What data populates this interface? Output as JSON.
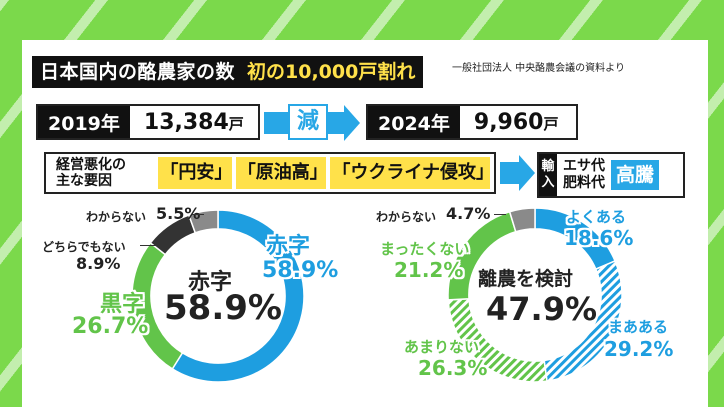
{
  "header": {
    "title": "日本国内の酪農家の数",
    "subtitle": "初の10,000戸割れ",
    "source": "一般社団法人 中央酪農会議の資料より"
  },
  "trend": {
    "year_from": "2019年",
    "value_from": "13,384",
    "unit": "戸",
    "change_label": "減",
    "year_to": "2024年",
    "value_to": "9,960"
  },
  "causes": {
    "label_line1": "経営悪化の",
    "label_line2": "主な要因",
    "items": [
      "「円安」",
      "「原油高」",
      "「ウクライナ侵攻」"
    ]
  },
  "impact": {
    "tag_line1": "輸",
    "tag_line2": "入",
    "item1": "エサ代",
    "item2": "肥料代",
    "result": "高騰"
  },
  "chart_data": [
    {
      "type": "pie",
      "center_label": "赤字",
      "center_value": "58.9%",
      "slices": [
        {
          "label": "赤字",
          "value": 58.9,
          "color": "#1e9ee0"
        },
        {
          "label": "黒字",
          "value": 26.7,
          "color": "#62c44a"
        },
        {
          "label": "どちらでもない",
          "value": 8.9,
          "color": "#333333"
        },
        {
          "label": "わからない",
          "value": 5.5,
          "color": "#8a8a8a"
        }
      ],
      "value_labels": [
        "58.9%",
        "26.7%",
        "8.9%",
        "5.5%"
      ]
    },
    {
      "type": "pie",
      "center_label": "離農を検討",
      "center_value": "47.9%",
      "slices": [
        {
          "label": "よくある",
          "value": 18.6,
          "color": "#1e9ee0"
        },
        {
          "label": "まあある",
          "value": 29.2,
          "color": "#1e9ee0",
          "pattern": "hatched"
        },
        {
          "label": "あまりない",
          "value": 26.3,
          "color": "#62c44a",
          "pattern": "hatched"
        },
        {
          "label": "まったくない",
          "value": 21.2,
          "color": "#62c44a"
        },
        {
          "label": "わからない",
          "value": 4.7,
          "color": "#8a8a8a"
        }
      ],
      "value_labels": [
        "18.6%",
        "29.2%",
        "26.3%",
        "21.2%",
        "4.7%"
      ]
    }
  ]
}
